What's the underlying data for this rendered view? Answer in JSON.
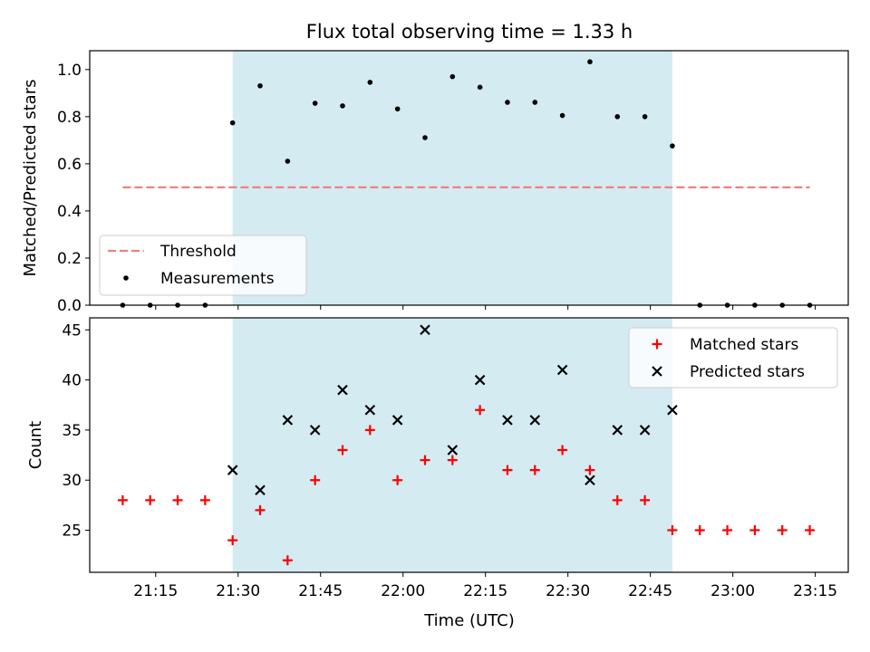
{
  "chart_data": {
    "title": "Flux total observing time = 1.33 h",
    "xlabel": "Time (UTC)",
    "x_ticks": [
      "21:15",
      "21:30",
      "21:45",
      "22:00",
      "22:15",
      "22:30",
      "22:45",
      "23:00",
      "23:15"
    ],
    "x_tick_minutes": [
      75,
      90,
      105,
      120,
      135,
      150,
      165,
      180,
      195
    ],
    "xlim_minutes": [
      63,
      201
    ],
    "observing_window": {
      "start": "21:29",
      "end": "22:49",
      "color": "#add8e6"
    },
    "charts": [
      {
        "type": "scatter",
        "ylabel": "Matched/Predicted stars",
        "ylim": [
          0,
          1.08
        ],
        "y_ticks": [
          "0.0",
          "0.2",
          "0.4",
          "0.6",
          "0.8",
          "1.0"
        ],
        "threshold": {
          "name": "Threshold",
          "value": 0.5,
          "x_range": [
            "21:09",
            "23:14"
          ],
          "color": "#f08080"
        },
        "series": [
          {
            "name": "Measurements",
            "color": "#000000",
            "points": [
              [
                "21:09",
                0.0
              ],
              [
                "21:14",
                0.0
              ],
              [
                "21:19",
                0.0
              ],
              [
                "21:24",
                0.0
              ],
              [
                "21:29",
                0.774
              ],
              [
                "21:34",
                0.931
              ],
              [
                "21:39",
                0.611
              ],
              [
                "21:44",
                0.857
              ],
              [
                "21:49",
                0.846
              ],
              [
                "21:54",
                0.946
              ],
              [
                "21:59",
                0.833
              ],
              [
                "22:04",
                0.711
              ],
              [
                "22:09",
                0.97
              ],
              [
                "22:14",
                0.925
              ],
              [
                "22:19",
                0.861
              ],
              [
                "22:24",
                0.861
              ],
              [
                "22:29",
                0.805
              ],
              [
                "22:34",
                1.033
              ],
              [
                "22:39",
                0.8
              ],
              [
                "22:44",
                0.8
              ],
              [
                "22:49",
                0.676
              ],
              [
                "22:54",
                0.0
              ],
              [
                "22:59",
                0.0
              ],
              [
                "23:04",
                0.0
              ],
              [
                "23:09",
                0.0
              ],
              [
                "23:14",
                0.0
              ]
            ]
          }
        ],
        "legend": "lower-left"
      },
      {
        "type": "scatter",
        "ylabel": "Count",
        "ylim": [
          20.8,
          46.2
        ],
        "y_ticks": [
          "25",
          "30",
          "35",
          "40",
          "45"
        ],
        "series": [
          {
            "name": "Matched stars",
            "marker": "plus",
            "color": "#ff0000",
            "points": [
              [
                "21:09",
                28
              ],
              [
                "21:14",
                28
              ],
              [
                "21:19",
                28
              ],
              [
                "21:24",
                28
              ],
              [
                "21:29",
                24
              ],
              [
                "21:34",
                27
              ],
              [
                "21:39",
                22
              ],
              [
                "21:44",
                30
              ],
              [
                "21:49",
                33
              ],
              [
                "21:54",
                35
              ],
              [
                "21:59",
                30
              ],
              [
                "22:04",
                32
              ],
              [
                "22:09",
                32
              ],
              [
                "22:14",
                37
              ],
              [
                "22:19",
                31
              ],
              [
                "22:24",
                31
              ],
              [
                "22:29",
                33
              ],
              [
                "22:34",
                31
              ],
              [
                "22:39",
                28
              ],
              [
                "22:44",
                28
              ],
              [
                "22:49",
                25
              ],
              [
                "22:54",
                25
              ],
              [
                "22:59",
                25
              ],
              [
                "23:04",
                25
              ],
              [
                "23:09",
                25
              ],
              [
                "23:14",
                25
              ]
            ]
          },
          {
            "name": "Predicted stars",
            "marker": "x",
            "color": "#000000",
            "points": [
              [
                "21:29",
                31
              ],
              [
                "21:34",
                29
              ],
              [
                "21:39",
                36
              ],
              [
                "21:44",
                35
              ],
              [
                "21:49",
                39
              ],
              [
                "21:54",
                37
              ],
              [
                "21:59",
                36
              ],
              [
                "22:04",
                45
              ],
              [
                "22:09",
                33
              ],
              [
                "22:14",
                40
              ],
              [
                "22:19",
                36
              ],
              [
                "22:24",
                36
              ],
              [
                "22:29",
                41
              ],
              [
                "22:34",
                30
              ],
              [
                "22:39",
                35
              ],
              [
                "22:44",
                35
              ],
              [
                "22:49",
                37
              ]
            ]
          }
        ],
        "legend": "top-right"
      }
    ]
  }
}
